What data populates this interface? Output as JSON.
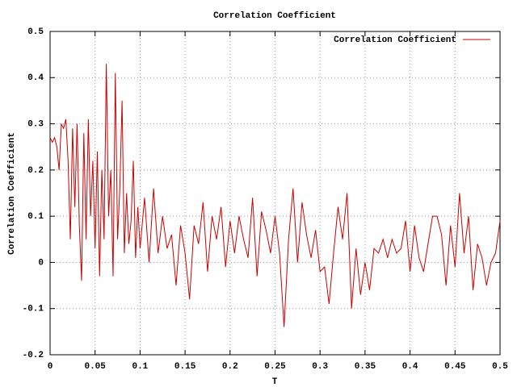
{
  "chart_data": {
    "type": "line",
    "title": "Correlation Coefficient",
    "xlabel": "T",
    "ylabel": "Correlation Coefficient",
    "x": [
      0,
      0.0025,
      0.005,
      0.0075,
      0.01,
      0.0125,
      0.015,
      0.0175,
      0.02,
      0.0225,
      0.025,
      0.0275,
      0.03,
      0.0325,
      0.035,
      0.0375,
      0.04,
      0.0425,
      0.045,
      0.0475,
      0.05,
      0.0525,
      0.055,
      0.0575,
      0.06,
      0.0625,
      0.065,
      0.0675,
      0.07,
      0.0725,
      0.075,
      0.0775,
      0.08,
      0.0825,
      0.085,
      0.0875,
      0.09,
      0.0925,
      0.095,
      0.0975,
      0.1,
      0.105,
      0.11,
      0.115,
      0.12,
      0.125,
      0.13,
      0.135,
      0.14,
      0.145,
      0.15,
      0.155,
      0.16,
      0.165,
      0.17,
      0.175,
      0.18,
      0.185,
      0.19,
      0.195,
      0.2,
      0.205,
      0.21,
      0.215,
      0.22,
      0.225,
      0.23,
      0.235,
      0.24,
      0.245,
      0.25,
      0.255,
      0.26,
      0.265,
      0.27,
      0.275,
      0.28,
      0.285,
      0.29,
      0.295,
      0.3,
      0.305,
      0.31,
      0.315,
      0.32,
      0.325,
      0.33,
      0.335,
      0.34,
      0.345,
      0.35,
      0.355,
      0.36,
      0.365,
      0.37,
      0.375,
      0.38,
      0.385,
      0.39,
      0.395,
      0.4,
      0.405,
      0.41,
      0.415,
      0.42,
      0.425,
      0.43,
      0.435,
      0.44,
      0.445,
      0.45,
      0.455,
      0.46,
      0.465,
      0.47,
      0.475,
      0.48,
      0.485,
      0.49,
      0.495,
      0.5
    ],
    "series": [
      {
        "name": "Correlation Coefficient",
        "color": "#cc0000",
        "values": [
          0.27,
          0.26,
          0.27,
          0.25,
          0.2,
          0.3,
          0.29,
          0.31,
          0.22,
          0.05,
          0.29,
          0.12,
          0.3,
          0.08,
          -0.04,
          0.28,
          0.05,
          0.31,
          0.1,
          0.22,
          0.03,
          0.24,
          -0.03,
          0.2,
          0.05,
          0.43,
          0.1,
          0.2,
          -0.03,
          0.41,
          0.05,
          0.16,
          0.35,
          0.02,
          0.15,
          0.04,
          0.09,
          0.22,
          0.01,
          0.12,
          0.03,
          0.14,
          0.0,
          0.16,
          0.02,
          0.1,
          0.03,
          0.06,
          -0.05,
          0.08,
          0.02,
          -0.08,
          0.08,
          0.04,
          0.13,
          -0.02,
          0.1,
          0.05,
          0.12,
          -0.01,
          0.09,
          0.02,
          0.1,
          0.05,
          0.01,
          0.14,
          -0.03,
          0.11,
          0.07,
          0.02,
          0.1,
          0.02,
          -0.14,
          0.05,
          0.16,
          0.0,
          0.13,
          0.06,
          0.01,
          0.07,
          -0.02,
          -0.01,
          -0.09,
          0.02,
          0.12,
          0.05,
          0.15,
          -0.1,
          0.03,
          -0.07,
          0.0,
          -0.06,
          0.03,
          0.02,
          0.05,
          0.01,
          0.05,
          0.02,
          0.03,
          0.09,
          -0.02,
          0.08,
          0.01,
          -0.02,
          0.04,
          0.1,
          0.1,
          0.06,
          -0.05,
          0.08,
          -0.01,
          0.15,
          0.02,
          0.1,
          -0.06,
          0.04,
          0.01,
          -0.05,
          0.0,
          0.02,
          0.09
        ]
      }
    ],
    "xlim": [
      0,
      0.5
    ],
    "ylim": [
      -0.2,
      0.5
    ],
    "xticks": [
      0,
      0.05,
      0.1,
      0.15,
      0.2,
      0.25,
      0.3,
      0.35,
      0.4,
      0.45,
      0.5
    ],
    "yticks": [
      -0.2,
      -0.1,
      0,
      0.1,
      0.2,
      0.3,
      0.4,
      0.5
    ],
    "grid": true,
    "legend": "top-right"
  }
}
